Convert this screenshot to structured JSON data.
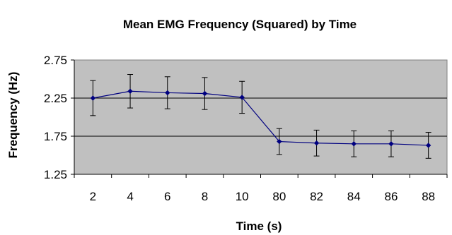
{
  "chart_data": {
    "type": "line",
    "title": "Mean EMG Frequency (Squared) by Time",
    "xlabel": "Time (s)",
    "ylabel": "Frequency (Hz)",
    "categories": [
      "2",
      "4",
      "6",
      "8",
      "10",
      "80",
      "82",
      "84",
      "86",
      "88"
    ],
    "series": [
      {
        "values": [
          2.25,
          2.34,
          2.32,
          2.31,
          2.26,
          1.68,
          1.66,
          1.65,
          1.65,
          1.63
        ],
        "error": [
          0.23,
          0.22,
          0.21,
          0.21,
          0.21,
          0.17,
          0.17,
          0.17,
          0.17,
          0.17
        ]
      }
    ],
    "ylim": [
      1.25,
      2.75
    ],
    "yticks": [
      1.25,
      1.75,
      2.25,
      2.75
    ],
    "ytick_labels": [
      "1.25",
      "1.75",
      "2.25",
      "2.75"
    ],
    "grid": true,
    "legend": "none",
    "colors": {
      "plot_background": "#c0c0c0",
      "series": "#000080",
      "error_bars": "#000000",
      "gridlines": "#000000"
    }
  }
}
